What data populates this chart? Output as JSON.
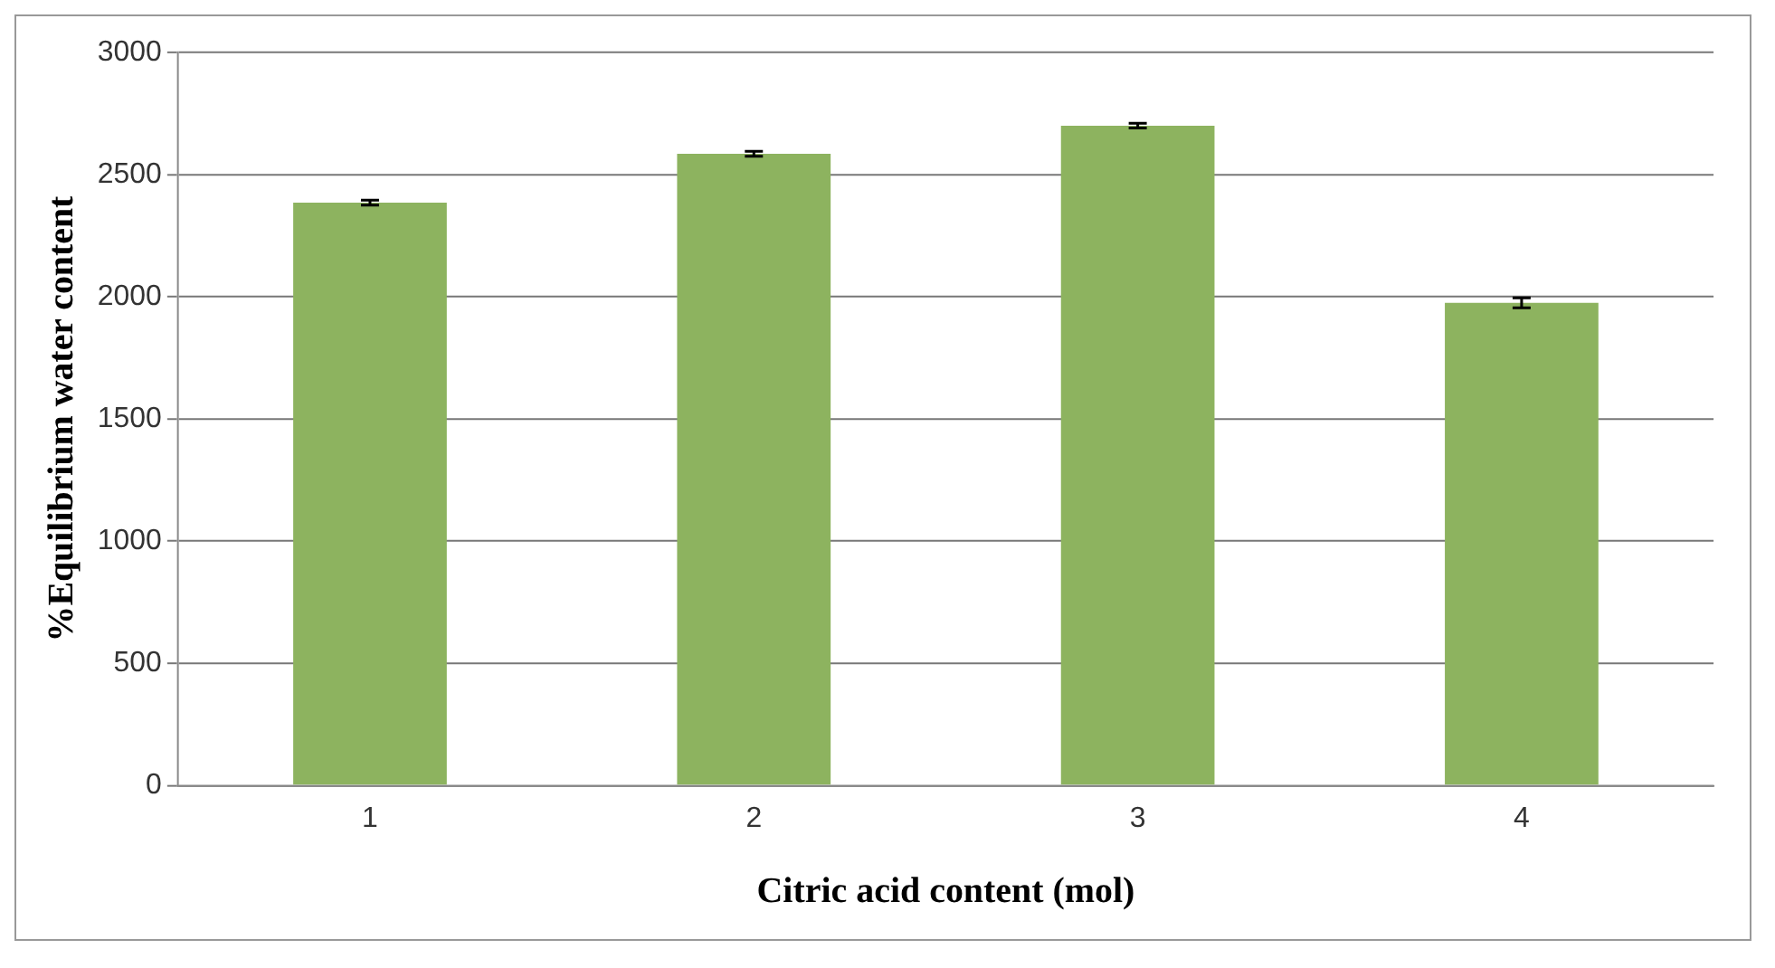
{
  "chart_data": {
    "type": "bar",
    "xlabel": "Citric acid content (mol)",
    "ylabel": "%Equilibrium water content",
    "categories": [
      "1",
      "2",
      "3",
      "4"
    ],
    "values": [
      2385,
      2585,
      2700,
      1975
    ],
    "errors": [
      10,
      10,
      10,
      20
    ],
    "color": "#8db35f",
    "ylim": [
      0,
      3000
    ],
    "yticks": [
      0,
      500,
      1000,
      1500,
      2000,
      2500,
      3000
    ],
    "grid": "y",
    "legend": false
  }
}
